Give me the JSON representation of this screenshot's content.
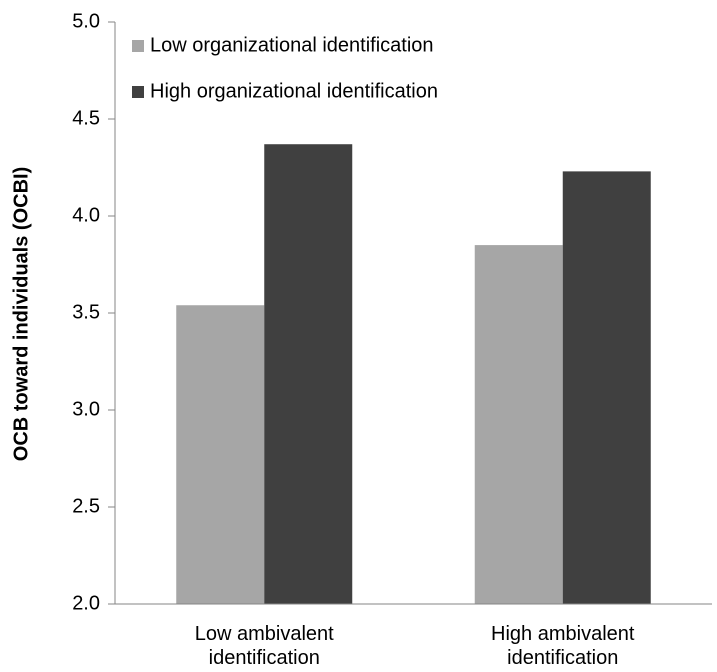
{
  "chart_data": {
    "type": "bar",
    "y_label": "OCB toward individuals (OCBI)",
    "categories": [
      "Low ambivalent identification",
      "High ambivalent identification"
    ],
    "series": [
      {
        "name": "Low organizational identification",
        "color": "#a6a6a6",
        "values": [
          3.54,
          3.85
        ]
      },
      {
        "name": "High organizational identification",
        "color": "#404040",
        "values": [
          4.37,
          4.23
        ]
      }
    ],
    "ylim": [
      2,
      5
    ],
    "yticks": [
      {
        "value": 2,
        "label": "2.0"
      },
      2.5,
      {
        "value": 3,
        "label": "3.0"
      },
      3.5,
      {
        "value": 4,
        "label": "4.0"
      },
      4.5,
      {
        "value": 5,
        "label": "5.0"
      }
    ],
    "legend": "upper left",
    "grid": false
  }
}
